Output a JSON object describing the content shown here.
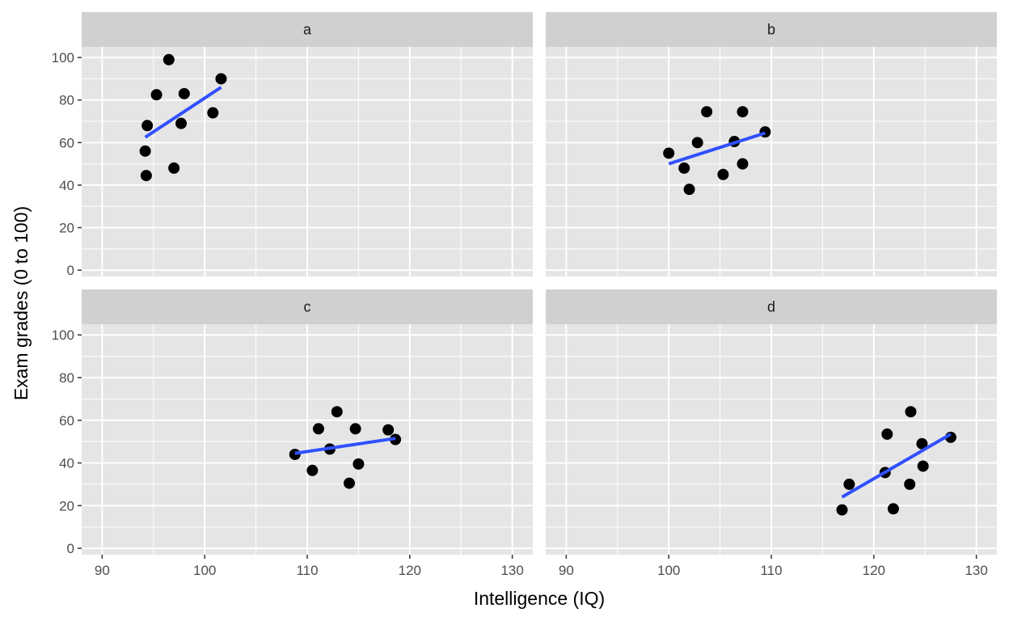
{
  "chart_data": {
    "type": "scatter",
    "facet_layout": "2x2",
    "xlabel": "Intelligence (IQ)",
    "ylabel": "Exam grades (0 to 100)",
    "xlim": [
      88,
      132
    ],
    "ylim": [
      -3,
      105
    ],
    "x_ticks": [
      90,
      100,
      110,
      120,
      130
    ],
    "y_ticks": [
      0,
      20,
      40,
      60,
      80,
      100
    ],
    "grid": true,
    "colors": {
      "panel_background": "#e5e5e5",
      "strip_background": "#d0d0d0",
      "gridline": "#ffffff",
      "point": "#000000",
      "fit_line": "#3050ff"
    },
    "facets": [
      {
        "label": "a",
        "points": [
          {
            "x": 96.5,
            "y": 99
          },
          {
            "x": 101.6,
            "y": 90
          },
          {
            "x": 95.3,
            "y": 82.5
          },
          {
            "x": 98.0,
            "y": 83
          },
          {
            "x": 100.8,
            "y": 74
          },
          {
            "x": 97.7,
            "y": 69
          },
          {
            "x": 94.4,
            "y": 68
          },
          {
            "x": 94.2,
            "y": 56
          },
          {
            "x": 97.0,
            "y": 48
          },
          {
            "x": 94.3,
            "y": 44.5
          }
        ],
        "fit": {
          "x": [
            94.2,
            101.6
          ],
          "y": [
            62.5,
            86
          ]
        }
      },
      {
        "label": "b",
        "points": [
          {
            "x": 100.0,
            "y": 55
          },
          {
            "x": 101.5,
            "y": 48
          },
          {
            "x": 102.0,
            "y": 38
          },
          {
            "x": 102.8,
            "y": 60
          },
          {
            "x": 103.7,
            "y": 74.5
          },
          {
            "x": 105.3,
            "y": 45
          },
          {
            "x": 106.4,
            "y": 60.5
          },
          {
            "x": 107.2,
            "y": 74.5
          },
          {
            "x": 107.2,
            "y": 50
          },
          {
            "x": 109.4,
            "y": 65
          }
        ],
        "fit": {
          "x": [
            100.0,
            109.4
          ],
          "y": [
            50,
            64.5
          ]
        }
      },
      {
        "label": "c",
        "points": [
          {
            "x": 108.8,
            "y": 44
          },
          {
            "x": 110.5,
            "y": 36.5
          },
          {
            "x": 111.1,
            "y": 56
          },
          {
            "x": 112.2,
            "y": 46.5
          },
          {
            "x": 112.9,
            "y": 64
          },
          {
            "x": 114.1,
            "y": 30.5
          },
          {
            "x": 114.7,
            "y": 56
          },
          {
            "x": 115.0,
            "y": 39.5
          },
          {
            "x": 117.9,
            "y": 55.5
          },
          {
            "x": 118.6,
            "y": 51
          }
        ],
        "fit": {
          "x": [
            108.8,
            118.6
          ],
          "y": [
            44.5,
            51.5
          ]
        }
      },
      {
        "label": "d",
        "points": [
          {
            "x": 116.9,
            "y": 18
          },
          {
            "x": 117.6,
            "y": 30
          },
          {
            "x": 121.1,
            "y": 35.5
          },
          {
            "x": 121.3,
            "y": 53.5
          },
          {
            "x": 121.9,
            "y": 18.5
          },
          {
            "x": 123.6,
            "y": 64
          },
          {
            "x": 123.5,
            "y": 30
          },
          {
            "x": 124.7,
            "y": 49
          },
          {
            "x": 124.8,
            "y": 38.5
          },
          {
            "x": 127.5,
            "y": 52
          }
        ],
        "fit": {
          "x": [
            116.9,
            127.5
          ],
          "y": [
            24,
            53.5
          ]
        }
      }
    ]
  }
}
